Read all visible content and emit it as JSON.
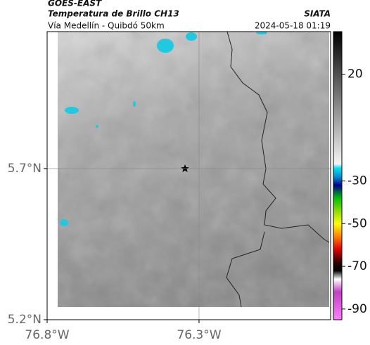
{
  "header": {
    "satellite": "GOES-EAST",
    "title": "Temperatura de Brillo CH13",
    "agency": "SIATA",
    "subtitle": "Vía Medellín - Quibdó 50km",
    "datetime": "2024-05-18 01:19"
  },
  "map": {
    "xlim": [
      -76.8,
      -75.867
    ],
    "ylim": [
      5.2,
      6.153
    ],
    "xticks": [
      {
        "value": -76.8,
        "label": "76.8°W"
      },
      {
        "value": -76.3,
        "label": "76.3°W"
      }
    ],
    "yticks": [
      {
        "value": 5.7,
        "label": "5.7°N"
      },
      {
        "value": 5.2,
        "label": "5.2°N"
      }
    ]
  },
  "colorbar": {
    "lim": [
      -95,
      40
    ],
    "ticks": [
      20,
      -30,
      -50,
      -70,
      -90
    ],
    "colormap": [
      [
        40,
        "#000000"
      ],
      [
        -22,
        "#f4f4f4"
      ],
      [
        -24,
        "#00e0f0"
      ],
      [
        -28,
        "#0090d0"
      ],
      [
        -32,
        "#000090"
      ],
      [
        -38,
        "#00c000"
      ],
      [
        -45,
        "#a0e000"
      ],
      [
        -50,
        "#ffff00"
      ],
      [
        -56,
        "#ff8000"
      ],
      [
        -62,
        "#e00000"
      ],
      [
        -68,
        "#300000"
      ],
      [
        -72,
        "#000000"
      ],
      [
        -76,
        "#ffffff"
      ],
      [
        -82,
        "#c040c0"
      ],
      [
        -95,
        "#ff80ff"
      ]
    ]
  }
}
